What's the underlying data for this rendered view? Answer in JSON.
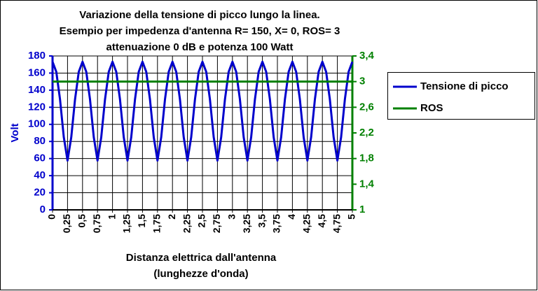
{
  "chart_data": {
    "type": "line",
    "title": [
      "Variazione della tensione di picco lungo la linea.",
      "Esempio per impedenza d'antenna R= 150, X= 0, ROS= 3",
      "attenuazione 0 dB e potenza 100 Watt"
    ],
    "x_label": [
      "Distanza elettrica dall'antenna",
      "(lunghezze d'onda)"
    ],
    "y_label": "Volt",
    "xlim": [
      0,
      5
    ],
    "xticks": [
      0,
      {
        "value": 0.25,
        "label": "0,25"
      },
      {
        "value": 0.5,
        "label": "0,5"
      },
      {
        "value": 0.75,
        "label": "0,75"
      },
      1,
      {
        "value": 1.25,
        "label": "1,25"
      },
      {
        "value": 1.5,
        "label": "1,5"
      },
      {
        "value": 1.75,
        "label": "1,75"
      },
      2,
      {
        "value": 2.25,
        "label": "2,25"
      },
      {
        "value": 2.5,
        "label": "2,5"
      },
      {
        "value": 2.75,
        "label": "2,75"
      },
      3,
      {
        "value": 3.25,
        "label": "3,25"
      },
      {
        "value": 3.5,
        "label": "3,5"
      },
      {
        "value": 3.75,
        "label": "3,75"
      },
      4,
      {
        "value": 4.25,
        "label": "4,25"
      },
      {
        "value": 4.5,
        "label": "4,5"
      },
      {
        "value": 4.75,
        "label": "4,75"
      },
      5
    ],
    "ylim": [
      0,
      180
    ],
    "yticks": [
      0,
      20,
      40,
      60,
      80,
      100,
      120,
      140,
      160,
      180
    ],
    "y2lim": [
      1,
      3.4
    ],
    "y2ticks": [
      1,
      {
        "value": 1.4,
        "label": "1,4"
      },
      {
        "value": 1.8,
        "label": "1,8"
      },
      {
        "value": 2.2,
        "label": "2,2"
      },
      {
        "value": 2.6,
        "label": "2,6"
      },
      3,
      {
        "value": 3.4,
        "label": "3,4"
      }
    ],
    "grid": true,
    "legend": "right",
    "series": [
      {
        "name": "Tensione di picco",
        "color": "#0000cc",
        "x": [
          0,
          0.0625,
          0.125,
          0.1875,
          0.25,
          0.3125,
          0.375,
          0.4375,
          0.5,
          0.5625,
          0.625,
          0.6875,
          0.75,
          0.8125,
          0.875,
          0.9375,
          1,
          1.0625,
          1.125,
          1.1875,
          1.25,
          1.3125,
          1.375,
          1.4375,
          1.5,
          1.5625,
          1.625,
          1.6875,
          1.75,
          1.8125,
          1.875,
          1.9375,
          2,
          2.0625,
          2.125,
          2.1875,
          2.25,
          2.3125,
          2.375,
          2.4375,
          2.5,
          2.5625,
          2.625,
          2.6875,
          2.75,
          2.8125,
          2.875,
          2.9375,
          3,
          3.0625,
          3.125,
          3.1875,
          3.25,
          3.3125,
          3.375,
          3.4375,
          3.5,
          3.5625,
          3.625,
          3.6875,
          3.75,
          3.8125,
          3.875,
          3.9375,
          4,
          4.0625,
          4.125,
          4.1875,
          4.25,
          4.3125,
          4.375,
          4.4375,
          4.5,
          4.5625,
          4.625,
          4.6875,
          4.75,
          4.8125,
          4.875,
          4.9375,
          5
        ],
        "values": [
          173.2,
          161.5,
          129.1,
          85.1,
          57.7,
          85.1,
          129.1,
          161.5,
          173.2,
          161.5,
          129.1,
          85.1,
          57.7,
          85.1,
          129.1,
          161.5,
          173.2,
          161.5,
          129.1,
          85.1,
          57.7,
          85.1,
          129.1,
          161.5,
          173.2,
          161.5,
          129.1,
          85.1,
          57.7,
          85.1,
          129.1,
          161.5,
          173.2,
          161.5,
          129.1,
          85.1,
          57.7,
          85.1,
          129.1,
          161.5,
          173.2,
          161.5,
          129.1,
          85.1,
          57.7,
          85.1,
          129.1,
          161.5,
          173.2,
          161.5,
          129.1,
          85.1,
          57.7,
          85.1,
          129.1,
          161.5,
          173.2,
          161.5,
          129.1,
          85.1,
          57.7,
          85.1,
          129.1,
          161.5,
          173.2,
          161.5,
          129.1,
          85.1,
          57.7,
          85.1,
          129.1,
          161.5,
          173.2,
          161.5,
          129.1,
          85.1,
          57.7,
          85.1,
          129.1,
          161.5,
          173.2
        ]
      },
      {
        "name": "ROS",
        "color": "#008000",
        "axis": "y2",
        "x": [
          0,
          5
        ],
        "values": [
          3,
          3
        ]
      }
    ]
  }
}
